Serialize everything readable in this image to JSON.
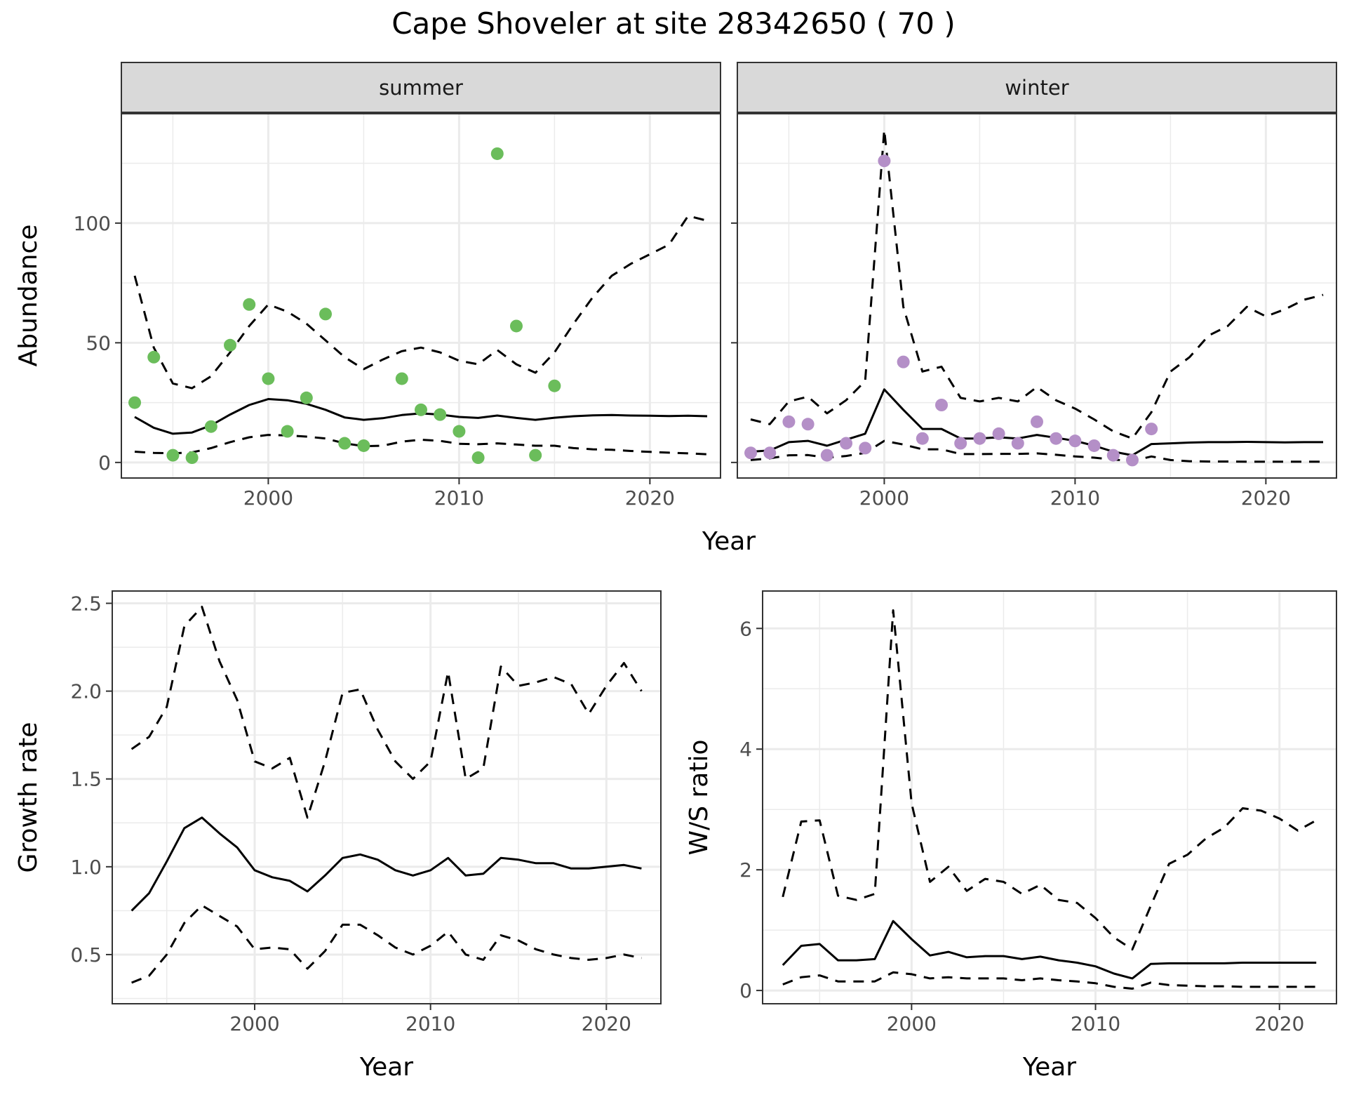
{
  "title": "Cape Shoveler at site 28342650 ( 70 )",
  "colors": {
    "summer_points": "#6bbd5b",
    "winter_points": "#b48fc7",
    "line": "#000000",
    "grid_major": "#ebebeb",
    "strip_bg": "#d9d9d9",
    "panel_border": "#333333"
  },
  "chart_data": [
    {
      "type": "line",
      "panel": "summer",
      "strip_label": "summer",
      "xlabel": "Year",
      "ylabel": "Abundance",
      "xlim": [
        1992.3,
        2023.7
      ],
      "ylim": [
        -6.5,
        146
      ],
      "xticks": [
        2000,
        2010,
        2020
      ],
      "xtick_labels": [
        "2000",
        "2010",
        "2020"
      ],
      "yticks": [
        0,
        50,
        100
      ],
      "ytick_labels": [
        "0",
        "50",
        "100"
      ],
      "grid": true,
      "points": {
        "x": [
          1993,
          1994,
          1995,
          1996,
          1997,
          1998,
          1999,
          2000,
          2001,
          2002,
          2003,
          2004,
          2005,
          2007,
          2008,
          2009,
          2010,
          2011,
          2012,
          2013,
          2014,
          2015
        ],
        "y": [
          25,
          44,
          3,
          2,
          15,
          49,
          66,
          35,
          13,
          27,
          62,
          8,
          7,
          35,
          22,
          20,
          13,
          2,
          129,
          57,
          3,
          32
        ]
      },
      "series": [
        {
          "name": "estimate",
          "style": "solid",
          "x": [
            1993,
            1994,
            1995,
            1996,
            1997,
            1998,
            1999,
            2000,
            2001,
            2002,
            2003,
            2004,
            2005,
            2006,
            2007,
            2008,
            2009,
            2010,
            2011,
            2012,
            2013,
            2014,
            2015,
            2016,
            2017,
            2018,
            2019,
            2020,
            2021,
            2022,
            2023
          ],
          "y": [
            19,
            14.5,
            12,
            12.5,
            15.5,
            20,
            24,
            26.5,
            26,
            24.5,
            22,
            18.8,
            17.8,
            18.5,
            19.8,
            20.5,
            20,
            19,
            18.6,
            19.6,
            18.6,
            17.8,
            18.7,
            19.3,
            19.7,
            19.8,
            19.6,
            19.5,
            19.4,
            19.5,
            19.3
          ]
        },
        {
          "name": "upper",
          "style": "dashed",
          "x": [
            1993,
            1994,
            1995,
            1996,
            1997,
            1998,
            1999,
            2000,
            2001,
            2002,
            2003,
            2004,
            2005,
            2006,
            2007,
            2008,
            2009,
            2010,
            2011,
            2012,
            2013,
            2014,
            2015,
            2016,
            2017,
            2018,
            2019,
            2020,
            2021,
            2022,
            2023
          ],
          "y": [
            78,
            48,
            33,
            31,
            36,
            46,
            57,
            66,
            63,
            58,
            51,
            44,
            39,
            43,
            46.5,
            48,
            46,
            42.5,
            41,
            47,
            41,
            37.5,
            46,
            58,
            69,
            78,
            83,
            87,
            91,
            103,
            101
          ]
        },
        {
          "name": "lower",
          "style": "dashed",
          "x": [
            1993,
            1994,
            1995,
            1996,
            1997,
            1998,
            1999,
            2000,
            2001,
            2002,
            2003,
            2004,
            2005,
            2006,
            2007,
            2008,
            2009,
            2010,
            2011,
            2012,
            2013,
            2014,
            2015,
            2016,
            2017,
            2018,
            2019,
            2020,
            2021,
            2022,
            2023
          ],
          "y": [
            4.5,
            4,
            3.8,
            4.2,
            6,
            8.5,
            10.5,
            11.5,
            11.3,
            10.8,
            10,
            8,
            6.8,
            7,
            8.7,
            9.5,
            9,
            7.8,
            7.6,
            8,
            7.5,
            7,
            7,
            6,
            5.5,
            5.3,
            4.8,
            4.4,
            4.1,
            3.8,
            3.4
          ]
        }
      ]
    },
    {
      "type": "line",
      "panel": "winter",
      "strip_label": "winter",
      "xlabel": "Year",
      "ylabel": "Abundance",
      "xlim": [
        1992.3,
        2023.7
      ],
      "ylim": [
        -6.5,
        146
      ],
      "xticks": [
        2000,
        2010,
        2020
      ],
      "xtick_labels": [
        "2000",
        "2010",
        "2020"
      ],
      "yticks": [
        0,
        50,
        100
      ],
      "grid": true,
      "points": {
        "x": [
          1993,
          1994,
          1995,
          1996,
          1997,
          1998,
          1999,
          2000,
          2001,
          2002,
          2003,
          2004,
          2005,
          2006,
          2007,
          2008,
          2009,
          2010,
          2011,
          2012,
          2013,
          2014
        ],
        "y": [
          4,
          4,
          17,
          16,
          3,
          8,
          6,
          126,
          42,
          10,
          24,
          8,
          10,
          12,
          8,
          17,
          10,
          9,
          7,
          3,
          1,
          14
        ]
      },
      "series": [
        {
          "name": "estimate",
          "style": "solid",
          "x": [
            1993,
            1994,
            1995,
            1996,
            1997,
            1998,
            1999,
            2000,
            2001,
            2002,
            2003,
            2004,
            2005,
            2006,
            2007,
            2008,
            2009,
            2010,
            2011,
            2012,
            2013,
            2014,
            2015,
            2016,
            2017,
            2018,
            2019,
            2020,
            2021,
            2022,
            2023
          ],
          "y": [
            4.5,
            5,
            8.5,
            9,
            7,
            9.5,
            12,
            30.5,
            22,
            14,
            14,
            10,
            10,
            10.5,
            10,
            11.5,
            10.3,
            9,
            7,
            4.5,
            3,
            7.7,
            8,
            8.3,
            8.5,
            8.5,
            8.6,
            8.5,
            8.4,
            8.5,
            8.5
          ]
        },
        {
          "name": "upper",
          "style": "dashed",
          "x": [
            1993,
            1994,
            1995,
            1996,
            1997,
            1998,
            1999,
            2000,
            2001,
            2002,
            2003,
            2004,
            2005,
            2006,
            2007,
            2008,
            2009,
            2010,
            2011,
            2012,
            2013,
            2014,
            2015,
            2016,
            2017,
            2018,
            2019,
            2020,
            2021,
            2022,
            2023
          ],
          "y": [
            18,
            16,
            25.5,
            27.5,
            20.5,
            26,
            34,
            139,
            65,
            38,
            40,
            27,
            25.5,
            27,
            25.5,
            31.5,
            26,
            22.5,
            18,
            13,
            10,
            21,
            38,
            44,
            53,
            57,
            65,
            61,
            64,
            68,
            70
          ]
        },
        {
          "name": "lower",
          "style": "dashed",
          "x": [
            1993,
            1994,
            1995,
            1996,
            1997,
            1998,
            1999,
            2000,
            2001,
            2002,
            2003,
            2004,
            2005,
            2006,
            2007,
            2008,
            2009,
            2010,
            2011,
            2012,
            2013,
            2014,
            2015,
            2016,
            2017,
            2018,
            2019,
            2020,
            2021,
            2022,
            2023
          ],
          "y": [
            1,
            1.7,
            3,
            3.1,
            2,
            2.7,
            4,
            9,
            7.5,
            5.5,
            5.5,
            3.5,
            3.5,
            3.6,
            3.6,
            3.8,
            3.2,
            2.5,
            2,
            1.2,
            0.6,
            2.5,
            1,
            0.5,
            0.4,
            0.4,
            0.3,
            0.3,
            0.3,
            0.3,
            0.3
          ]
        }
      ]
    },
    {
      "type": "line",
      "panel": "growth",
      "xlabel": "Year",
      "ylabel": "Growth rate",
      "xlim": [
        1991.9,
        2023.1
      ],
      "ylim": [
        0.22,
        2.57
      ],
      "xticks": [
        2000,
        2010,
        2020
      ],
      "xtick_labels": [
        "2000",
        "2010",
        "2020"
      ],
      "yticks": [
        0.5,
        1.0,
        1.5,
        2.0,
        2.5
      ],
      "ytick_labels": [
        "0.5",
        "1.0",
        "1.5",
        "2.0",
        "2.5"
      ],
      "grid": true,
      "series": [
        {
          "name": "estimate",
          "style": "solid",
          "x": [
            1993,
            1994,
            1995,
            1996,
            1997,
            1998,
            1999,
            2000,
            2001,
            2002,
            2003,
            2004,
            2005,
            2006,
            2007,
            2008,
            2009,
            2010,
            2011,
            2012,
            2013,
            2014,
            2015,
            2016,
            2017,
            2018,
            2019,
            2020,
            2021,
            2022
          ],
          "y": [
            0.75,
            0.85,
            1.03,
            1.22,
            1.28,
            1.19,
            1.11,
            0.98,
            0.94,
            0.92,
            0.86,
            0.95,
            1.05,
            1.07,
            1.04,
            0.98,
            0.95,
            0.98,
            1.05,
            0.95,
            0.96,
            1.05,
            1.04,
            1.02,
            1.02,
            0.99,
            0.99,
            1.0,
            1.01,
            0.99
          ]
        },
        {
          "name": "upper",
          "style": "dashed",
          "x": [
            1993,
            1994,
            1995,
            1996,
            1997,
            1998,
            1999,
            2000,
            2001,
            2002,
            2003,
            2004,
            2005,
            2006,
            2007,
            2008,
            2009,
            2010,
            2011,
            2012,
            2013,
            2014,
            2015,
            2016,
            2017,
            2018,
            2019,
            2020,
            2021,
            2022
          ],
          "y": [
            1.67,
            1.74,
            1.91,
            2.37,
            2.48,
            2.17,
            1.95,
            1.6,
            1.56,
            1.62,
            1.28,
            1.6,
            1.99,
            2.01,
            1.78,
            1.6,
            1.5,
            1.6,
            2.11,
            1.5,
            1.56,
            2.14,
            2.03,
            2.05,
            2.08,
            2.04,
            1.87,
            2.03,
            2.16,
            2.0
          ]
        },
        {
          "name": "lower",
          "style": "dashed",
          "x": [
            1993,
            1994,
            1995,
            1996,
            1997,
            1998,
            1999,
            2000,
            2001,
            2002,
            2003,
            2004,
            2005,
            2006,
            2007,
            2008,
            2009,
            2010,
            2011,
            2012,
            2013,
            2014,
            2015,
            2016,
            2017,
            2018,
            2019,
            2020,
            2021,
            2022
          ],
          "y": [
            0.34,
            0.38,
            0.5,
            0.68,
            0.78,
            0.72,
            0.66,
            0.53,
            0.54,
            0.53,
            0.42,
            0.52,
            0.67,
            0.67,
            0.61,
            0.54,
            0.5,
            0.55,
            0.63,
            0.5,
            0.47,
            0.61,
            0.58,
            0.53,
            0.5,
            0.48,
            0.47,
            0.48,
            0.5,
            0.48
          ]
        }
      ]
    },
    {
      "type": "line",
      "panel": "ws_ratio",
      "xlabel": "Year",
      "ylabel": "W/S ratio",
      "xlim": [
        1991.9,
        2023.1
      ],
      "ylim": [
        -0.22,
        6.62
      ],
      "xticks": [
        2000,
        2010,
        2020
      ],
      "xtick_labels": [
        "2000",
        "2010",
        "2020"
      ],
      "yticks": [
        0,
        2,
        4,
        6
      ],
      "ytick_labels": [
        "0",
        "2",
        "4",
        "6"
      ],
      "grid": true,
      "series": [
        {
          "name": "estimate",
          "style": "solid",
          "x": [
            1993,
            1994,
            1995,
            1996,
            1997,
            1998,
            1999,
            2000,
            2001,
            2002,
            2003,
            2004,
            2005,
            2006,
            2007,
            2008,
            2009,
            2010,
            2011,
            2012,
            2013,
            2014,
            2015,
            2016,
            2017,
            2018,
            2019,
            2020,
            2021,
            2022
          ],
          "y": [
            0.42,
            0.74,
            0.77,
            0.5,
            0.5,
            0.52,
            1.15,
            0.85,
            0.58,
            0.64,
            0.55,
            0.57,
            0.57,
            0.52,
            0.56,
            0.5,
            0.46,
            0.4,
            0.28,
            0.2,
            0.44,
            0.45,
            0.45,
            0.45,
            0.45,
            0.46,
            0.46,
            0.46,
            0.46,
            0.46
          ]
        },
        {
          "name": "upper",
          "style": "dashed",
          "x": [
            1993,
            1994,
            1995,
            1996,
            1997,
            1998,
            1999,
            2000,
            2001,
            2002,
            2003,
            2004,
            2005,
            2006,
            2007,
            2008,
            2009,
            2010,
            2011,
            2012,
            2013,
            2014,
            2015,
            2016,
            2017,
            2018,
            2019,
            2020,
            2021,
            2022
          ],
          "y": [
            1.55,
            2.8,
            2.82,
            1.57,
            1.5,
            1.6,
            6.3,
            3.1,
            1.8,
            2.05,
            1.65,
            1.85,
            1.8,
            1.6,
            1.75,
            1.5,
            1.45,
            1.2,
            0.88,
            0.68,
            1.4,
            2.1,
            2.25,
            2.52,
            2.7,
            3.02,
            2.98,
            2.85,
            2.65,
            2.82
          ]
        },
        {
          "name": "lower",
          "style": "dashed",
          "x": [
            1993,
            1994,
            1995,
            1996,
            1997,
            1998,
            1999,
            2000,
            2001,
            2002,
            2003,
            2004,
            2005,
            2006,
            2007,
            2008,
            2009,
            2010,
            2011,
            2012,
            2013,
            2014,
            2015,
            2016,
            2017,
            2018,
            2019,
            2020,
            2021,
            2022
          ],
          "y": [
            0.1,
            0.22,
            0.25,
            0.15,
            0.15,
            0.15,
            0.3,
            0.27,
            0.2,
            0.22,
            0.2,
            0.2,
            0.2,
            0.17,
            0.2,
            0.17,
            0.15,
            0.12,
            0.06,
            0.03,
            0.13,
            0.09,
            0.08,
            0.07,
            0.07,
            0.06,
            0.06,
            0.06,
            0.06,
            0.06
          ]
        }
      ]
    }
  ]
}
